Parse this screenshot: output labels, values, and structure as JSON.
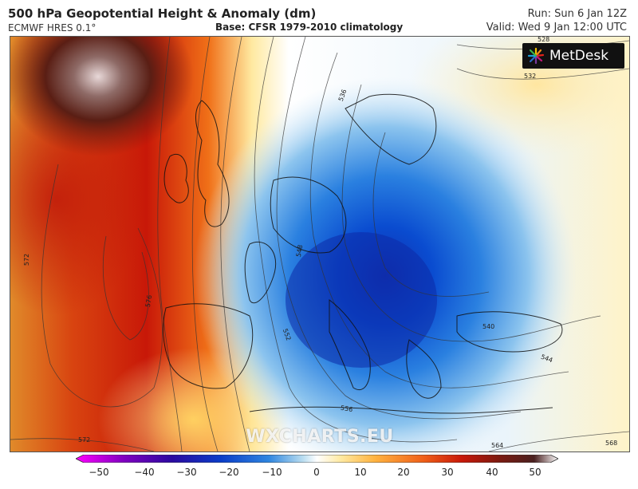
{
  "header": {
    "title": "500 hPa Geopotential Height & Anomaly (dm)",
    "model": "ECMWF HRES 0.1°",
    "base": "Base: CFSR 1979-2010 climatology",
    "run": "Run: Sun 6 Jan 12Z",
    "valid": "Valid: Wed 9 Jan 12:00 UTC"
  },
  "branding": {
    "logo_text": "MetDesk",
    "watermark": "WXCHARTS.EU"
  },
  "map": {
    "region": "Europe",
    "contour_labels": [
      "528",
      "532",
      "536",
      "540",
      "544",
      "548",
      "552",
      "556",
      "564",
      "568",
      "572",
      "576"
    ]
  },
  "colorbar": {
    "ticks": [
      "−50",
      "−40",
      "−30",
      "−20",
      "−10",
      "0",
      "10",
      "20",
      "30",
      "40",
      "50"
    ],
    "colors": [
      "#ff00ff",
      "#8000c0",
      "#2a0aa0",
      "#0a3cc8",
      "#2e86e0",
      "#b8dcf0",
      "#ffffff",
      "#ffe9a0",
      "#ffb340",
      "#f06018",
      "#c81808",
      "#7a1a10",
      "#4a2020",
      "#ffffff"
    ]
  }
}
